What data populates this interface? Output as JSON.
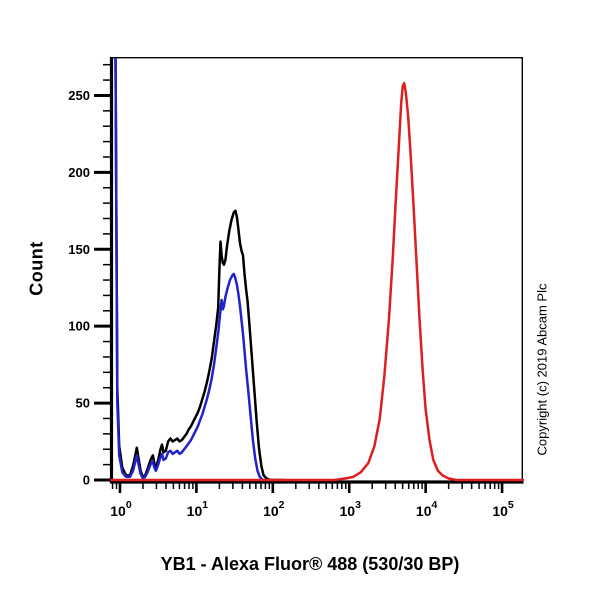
{
  "figure": {
    "title": "YB1 - Alexa Fluor® 488 (530/30 BP)",
    "ylabel": "Count",
    "copyright": "Copyright (c) 2019 Abcam Plc",
    "background_color": "#ffffff",
    "axis_color": "#000000"
  },
  "chart_data": {
    "type": "line",
    "subtype": "flow-cytometry-histogram",
    "title": "YB1 - Alexa Fluor® 488 (530/30 BP)",
    "xlabel": "",
    "ylabel": "Count",
    "x_scale": "log10",
    "x_range_log10": [
      -0.111,
      5.274
    ],
    "x_tick_exponents": [
      0,
      1,
      2,
      3,
      4,
      5
    ],
    "x_tick_base": "10",
    "ylim": [
      0,
      275
    ],
    "y_ticks": [
      0,
      50,
      100,
      150,
      200,
      250
    ],
    "y_minor_step": 10,
    "y_minor_max": 270,
    "grid": false,
    "legend": "none",
    "annotations": [
      "Copyright (c) 2019 Abcam Plc"
    ],
    "series": [
      {
        "name": "black-curve",
        "color": "#000000",
        "points_log10x_count": [
          [
            -0.06,
            292
          ],
          [
            -0.035,
            60
          ],
          [
            -0.01,
            22
          ],
          [
            0.03,
            8
          ],
          [
            0.08,
            3
          ],
          [
            0.13,
            3
          ],
          [
            0.17,
            9
          ],
          [
            0.2,
            16
          ],
          [
            0.22,
            21
          ],
          [
            0.24,
            15
          ],
          [
            0.27,
            6
          ],
          [
            0.3,
            2
          ],
          [
            0.33,
            3
          ],
          [
            0.36,
            7
          ],
          [
            0.4,
            13
          ],
          [
            0.43,
            16
          ],
          [
            0.45,
            11
          ],
          [
            0.47,
            8
          ],
          [
            0.5,
            13
          ],
          [
            0.53,
            20
          ],
          [
            0.55,
            23
          ],
          [
            0.57,
            18
          ],
          [
            0.6,
            19
          ],
          [
            0.63,
            25
          ],
          [
            0.66,
            27
          ],
          [
            0.69,
            25
          ],
          [
            0.72,
            26
          ],
          [
            0.75,
            27
          ],
          [
            0.78,
            25
          ],
          [
            0.81,
            26
          ],
          [
            0.84,
            28
          ],
          [
            0.87,
            30
          ],
          [
            0.9,
            33
          ],
          [
            0.93,
            35
          ],
          [
            0.96,
            38
          ],
          [
            0.99,
            41
          ],
          [
            1.02,
            44
          ],
          [
            1.05,
            48
          ],
          [
            1.08,
            53
          ],
          [
            1.11,
            58
          ],
          [
            1.14,
            64
          ],
          [
            1.17,
            71
          ],
          [
            1.2,
            79
          ],
          [
            1.23,
            90
          ],
          [
            1.26,
            101
          ],
          [
            1.285,
            112
          ],
          [
            1.3,
            135
          ],
          [
            1.315,
            155
          ],
          [
            1.33,
            146
          ],
          [
            1.345,
            141
          ],
          [
            1.36,
            140
          ],
          [
            1.38,
            143
          ],
          [
            1.4,
            152
          ],
          [
            1.43,
            162
          ],
          [
            1.46,
            169
          ],
          [
            1.49,
            174
          ],
          [
            1.51,
            175
          ],
          [
            1.53,
            171
          ],
          [
            1.55,
            163
          ],
          [
            1.57,
            154
          ],
          [
            1.59,
            149
          ],
          [
            1.61,
            146
          ],
          [
            1.63,
            134
          ],
          [
            1.65,
            124
          ],
          [
            1.67,
            116
          ],
          [
            1.7,
            97
          ],
          [
            1.73,
            77
          ],
          [
            1.76,
            57
          ],
          [
            1.79,
            37
          ],
          [
            1.82,
            20
          ],
          [
            1.85,
            9
          ],
          [
            1.88,
            3
          ],
          [
            1.92,
            1
          ],
          [
            1.97,
            0
          ],
          [
            2.15,
            0
          ]
        ]
      },
      {
        "name": "blue-curve",
        "color": "#2222cc",
        "points_log10x_count": [
          [
            -0.06,
            292
          ],
          [
            -0.035,
            50
          ],
          [
            -0.01,
            16
          ],
          [
            0.03,
            5
          ],
          [
            0.08,
            2
          ],
          [
            0.13,
            2
          ],
          [
            0.17,
            6
          ],
          [
            0.2,
            12
          ],
          [
            0.22,
            16
          ],
          [
            0.24,
            11
          ],
          [
            0.27,
            4
          ],
          [
            0.3,
            1
          ],
          [
            0.33,
            2
          ],
          [
            0.36,
            5
          ],
          [
            0.4,
            10
          ],
          [
            0.43,
            12
          ],
          [
            0.45,
            8
          ],
          [
            0.47,
            6
          ],
          [
            0.5,
            10
          ],
          [
            0.53,
            15
          ],
          [
            0.55,
            17
          ],
          [
            0.57,
            13
          ],
          [
            0.6,
            14
          ],
          [
            0.63,
            18
          ],
          [
            0.66,
            19
          ],
          [
            0.69,
            17
          ],
          [
            0.72,
            18
          ],
          [
            0.75,
            19
          ],
          [
            0.78,
            17
          ],
          [
            0.81,
            18
          ],
          [
            0.84,
            20
          ],
          [
            0.87,
            22
          ],
          [
            0.9,
            24
          ],
          [
            0.93,
            26
          ],
          [
            0.96,
            29
          ],
          [
            0.99,
            32
          ],
          [
            1.02,
            35
          ],
          [
            1.05,
            39
          ],
          [
            1.08,
            43
          ],
          [
            1.11,
            48
          ],
          [
            1.14,
            53
          ],
          [
            1.17,
            59
          ],
          [
            1.2,
            66
          ],
          [
            1.23,
            75
          ],
          [
            1.26,
            86
          ],
          [
            1.29,
            98
          ],
          [
            1.31,
            108
          ],
          [
            1.33,
            117
          ],
          [
            1.345,
            111
          ],
          [
            1.36,
            113
          ],
          [
            1.38,
            119
          ],
          [
            1.41,
            125
          ],
          [
            1.44,
            130
          ],
          [
            1.47,
            133
          ],
          [
            1.49,
            134
          ],
          [
            1.51,
            131
          ],
          [
            1.53,
            127
          ],
          [
            1.55,
            121
          ],
          [
            1.57,
            113
          ],
          [
            1.59,
            104
          ],
          [
            1.61,
            95
          ],
          [
            1.63,
            84
          ],
          [
            1.65,
            72
          ],
          [
            1.68,
            57
          ],
          [
            1.71,
            41
          ],
          [
            1.74,
            26
          ],
          [
            1.77,
            14
          ],
          [
            1.8,
            6
          ],
          [
            1.83,
            2
          ],
          [
            1.87,
            0
          ],
          [
            2.05,
            0
          ]
        ]
      },
      {
        "name": "red-curve",
        "color": "#dd1f1f",
        "points_log10x_count": [
          [
            -0.111,
            0
          ],
          [
            2.8,
            0
          ],
          [
            2.95,
            1
          ],
          [
            3.05,
            2
          ],
          [
            3.15,
            5
          ],
          [
            3.25,
            11
          ],
          [
            3.33,
            22
          ],
          [
            3.4,
            40
          ],
          [
            3.46,
            68
          ],
          [
            3.52,
            105
          ],
          [
            3.57,
            145
          ],
          [
            3.61,
            182
          ],
          [
            3.65,
            218
          ],
          [
            3.68,
            245
          ],
          [
            3.7,
            256
          ],
          [
            3.72,
            258
          ],
          [
            3.74,
            252
          ],
          [
            3.77,
            237
          ],
          [
            3.8,
            214
          ],
          [
            3.84,
            180
          ],
          [
            3.88,
            142
          ],
          [
            3.92,
            105
          ],
          [
            3.96,
            72
          ],
          [
            4.0,
            46
          ],
          [
            4.05,
            26
          ],
          [
            4.1,
            13
          ],
          [
            4.16,
            6
          ],
          [
            4.22,
            3
          ],
          [
            4.3,
            1
          ],
          [
            4.4,
            0
          ],
          [
            5.274,
            0
          ]
        ]
      }
    ]
  }
}
